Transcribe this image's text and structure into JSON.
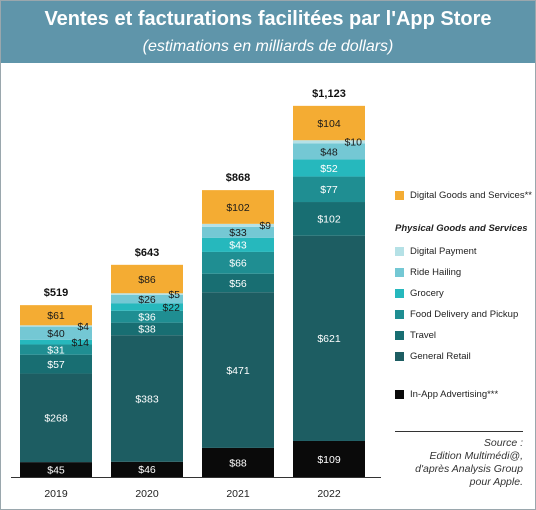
{
  "header": {
    "title": "Ventes et facturations facilitées par l'App Store",
    "subtitle": "(estimations en milliards de dollars)"
  },
  "chart_data": {
    "type": "bar",
    "stacked": true,
    "title": "Ventes et facturations facilitées par l'App Store",
    "subtitle": "(estimations en milliards de dollars)",
    "categories": [
      "2019",
      "2020",
      "2021",
      "2022"
    ],
    "totals": [
      "$519",
      "$643",
      "$868",
      "$1,123"
    ],
    "series": [
      {
        "name": "In-App Advertising***",
        "color": "#0a0a0a",
        "text_color": "#ffffff",
        "values": [
          45,
          46,
          88,
          109
        ]
      },
      {
        "name": "General Retail",
        "color": "#1d5d62",
        "text_color": "#ffffff",
        "values": [
          268,
          383,
          471,
          621
        ]
      },
      {
        "name": "Travel",
        "color": "#186e72",
        "text_color": "#ffffff",
        "values": [
          57,
          38,
          56,
          102
        ]
      },
      {
        "name": "Food Delivery and Pickup",
        "color": "#1f8e92",
        "text_color": "#ffffff",
        "values": [
          31,
          36,
          66,
          77
        ]
      },
      {
        "name": "Grocery",
        "color": "#26b8bd",
        "text_color": "#ffffff",
        "values": [
          14,
          22,
          43,
          52
        ]
      },
      {
        "name": "Ride Hailing",
        "color": "#74c8d4",
        "text_color": "#1a1a1a",
        "values": [
          40,
          26,
          33,
          48
        ]
      },
      {
        "name": "Digital Payment",
        "color": "#b5e1e6",
        "text_color": "#1a1a1a",
        "values": [
          4,
          5,
          9,
          10
        ]
      },
      {
        "name": "Digital Goods and Services**",
        "color": "#f4ac33",
        "text_color": "#1a1a1a",
        "values": [
          61,
          86,
          102,
          104
        ]
      }
    ],
    "legend": {
      "position": "right",
      "top_item": "Digital Goods and Services**",
      "group_heading": "Physical Goods and Services",
      "group_items": [
        "Digital Payment",
        "Ride Hailing",
        "Grocery",
        "Food Delivery and Pickup",
        "Travel",
        "General Retail"
      ],
      "bottom_item": "In-App Advertising***"
    },
    "grid": false
  },
  "source": {
    "line1": "Source :",
    "line2": "Edition Multimédi@,",
    "line3": "d'après Analysis Group",
    "line4": "pour Apple."
  }
}
